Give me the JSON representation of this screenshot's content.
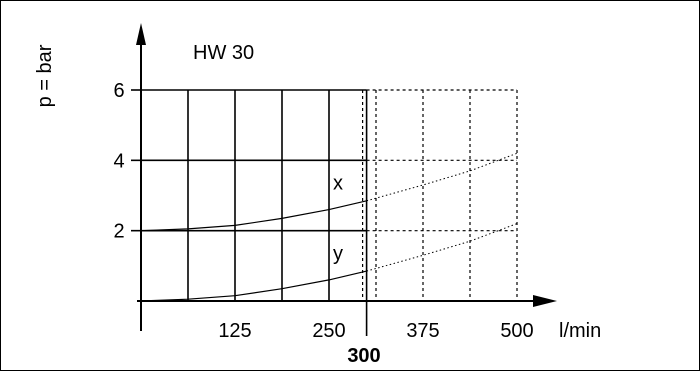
{
  "chart_data": {
    "type": "line",
    "title": "HW 30",
    "xlabel": "l/min",
    "ylabel": "p = bar",
    "x_ticks": [
      125,
      250,
      375,
      500
    ],
    "y_ticks": [
      2,
      4,
      6
    ],
    "xlim": [
      0,
      500
    ],
    "ylim": [
      0,
      6
    ],
    "highlight_x": {
      "value": 300,
      "label": "300"
    },
    "grid": "solid up to 300, dashed beyond",
    "series": [
      {
        "name": "x",
        "points": [
          [
            0,
            2.0
          ],
          [
            62.5,
            2.05
          ],
          [
            125,
            2.15
          ],
          [
            187.5,
            2.35
          ],
          [
            250,
            2.6
          ],
          [
            300,
            2.85
          ],
          [
            375,
            3.3
          ],
          [
            437.5,
            3.7
          ],
          [
            500,
            4.2
          ]
        ]
      },
      {
        "name": "y",
        "points": [
          [
            0,
            0.0
          ],
          [
            62.5,
            0.05
          ],
          [
            125,
            0.15
          ],
          [
            187.5,
            0.35
          ],
          [
            250,
            0.6
          ],
          [
            300,
            0.85
          ],
          [
            375,
            1.3
          ],
          [
            437.5,
            1.7
          ],
          [
            500,
            2.2
          ]
        ]
      }
    ]
  }
}
